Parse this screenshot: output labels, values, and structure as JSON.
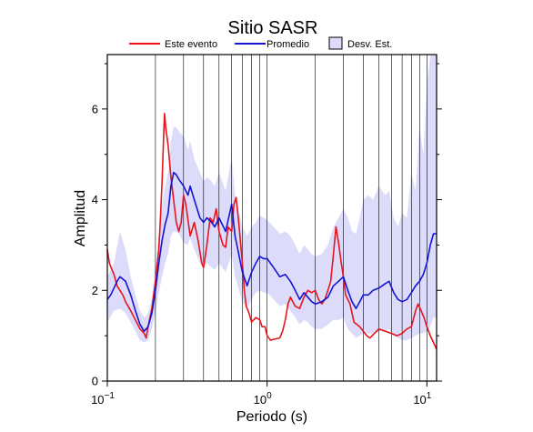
{
  "chart_data": {
    "type": "line",
    "title": "Sitio SASR",
    "xlabel": "Periodo (s)",
    "ylabel": "Amplitud",
    "xscale": "log",
    "xlim": [
      0.1,
      11.5
    ],
    "ylim": [
      0,
      7.2
    ],
    "grid": "vertical-log",
    "legend_position": "top",
    "x_ticks": [
      {
        "value": 0.1,
        "base": "10",
        "exp": "−1"
      },
      {
        "value": 1,
        "base": "10",
        "exp": "0"
      },
      {
        "value": 10,
        "base": "10",
        "exp": "1"
      }
    ],
    "y_ticks": [
      {
        "value": 0,
        "label": "0"
      },
      {
        "value": 2,
        "label": "2"
      },
      {
        "value": 4,
        "label": "4"
      },
      {
        "value": 6,
        "label": "6"
      }
    ],
    "legend": [
      {
        "label": "Este evento",
        "kind": "line",
        "color": "#e8141e"
      },
      {
        "label": "Promedio",
        "kind": "line",
        "color": "#1414d2"
      },
      {
        "label": "Desv. Est.",
        "kind": "band",
        "color": "#dcdcfa"
      }
    ],
    "series": [
      {
        "name": "Este evento",
        "color": "#e8141e",
        "points": [
          [
            0.1,
            2.9
          ],
          [
            0.103,
            2.6
          ],
          [
            0.107,
            2.45
          ],
          [
            0.11,
            2.35
          ],
          [
            0.115,
            2.1
          ],
          [
            0.12,
            2.0
          ],
          [
            0.125,
            1.9
          ],
          [
            0.13,
            1.75
          ],
          [
            0.14,
            1.55
          ],
          [
            0.15,
            1.35
          ],
          [
            0.16,
            1.15
          ],
          [
            0.17,
            1.05
          ],
          [
            0.175,
            0.95
          ],
          [
            0.18,
            1.2
          ],
          [
            0.19,
            1.6
          ],
          [
            0.2,
            2.2
          ],
          [
            0.21,
            2.9
          ],
          [
            0.215,
            3.6
          ],
          [
            0.22,
            4.4
          ],
          [
            0.225,
            5.4
          ],
          [
            0.228,
            5.9
          ],
          [
            0.232,
            5.6
          ],
          [
            0.24,
            5.2
          ],
          [
            0.25,
            4.5
          ],
          [
            0.26,
            4.0
          ],
          [
            0.27,
            3.5
          ],
          [
            0.28,
            3.3
          ],
          [
            0.29,
            3.5
          ],
          [
            0.3,
            4.1
          ],
          [
            0.31,
            3.9
          ],
          [
            0.33,
            3.2
          ],
          [
            0.35,
            3.5
          ],
          [
            0.37,
            3.1
          ],
          [
            0.39,
            2.6
          ],
          [
            0.4,
            2.5
          ],
          [
            0.42,
            3.0
          ],
          [
            0.44,
            3.6
          ],
          [
            0.46,
            3.5
          ],
          [
            0.48,
            3.8
          ],
          [
            0.5,
            3.3
          ],
          [
            0.53,
            3.0
          ],
          [
            0.55,
            2.95
          ],
          [
            0.57,
            3.4
          ],
          [
            0.6,
            3.3
          ],
          [
            0.62,
            3.9
          ],
          [
            0.64,
            4.05
          ],
          [
            0.66,
            3.6
          ],
          [
            0.7,
            2.6
          ],
          [
            0.72,
            2.0
          ],
          [
            0.74,
            1.65
          ],
          [
            0.77,
            1.5
          ],
          [
            0.8,
            1.3
          ],
          [
            0.85,
            1.4
          ],
          [
            0.9,
            1.35
          ],
          [
            0.93,
            1.2
          ],
          [
            0.97,
            1.2
          ],
          [
            1.0,
            1.0
          ],
          [
            1.05,
            0.9
          ],
          [
            1.1,
            0.92
          ],
          [
            1.2,
            0.95
          ],
          [
            1.25,
            1.1
          ],
          [
            1.3,
            1.35
          ],
          [
            1.35,
            1.7
          ],
          [
            1.4,
            1.85
          ],
          [
            1.5,
            1.65
          ],
          [
            1.6,
            1.6
          ],
          [
            1.7,
            1.85
          ],
          [
            1.8,
            2.0
          ],
          [
            1.9,
            1.95
          ],
          [
            2.0,
            2.0
          ],
          [
            2.1,
            1.8
          ],
          [
            2.2,
            1.7
          ],
          [
            2.3,
            1.8
          ],
          [
            2.4,
            2.0
          ],
          [
            2.5,
            2.2
          ],
          [
            2.6,
            2.8
          ],
          [
            2.7,
            3.4
          ],
          [
            2.8,
            3.05
          ],
          [
            2.9,
            2.65
          ],
          [
            3.0,
            2.3
          ],
          [
            3.1,
            1.9
          ],
          [
            3.3,
            1.7
          ],
          [
            3.5,
            1.3
          ],
          [
            3.8,
            1.2
          ],
          [
            4.0,
            1.1
          ],
          [
            4.2,
            1.0
          ],
          [
            4.4,
            0.95
          ],
          [
            4.7,
            1.05
          ],
          [
            5.0,
            1.15
          ],
          [
            5.5,
            1.1
          ],
          [
            6.0,
            1.05
          ],
          [
            6.5,
            1.0
          ],
          [
            7.0,
            1.05
          ],
          [
            7.5,
            1.15
          ],
          [
            8.0,
            1.2
          ],
          [
            8.5,
            1.55
          ],
          [
            8.8,
            1.7
          ],
          [
            9.2,
            1.55
          ],
          [
            9.6,
            1.4
          ],
          [
            10.0,
            1.2
          ],
          [
            10.5,
            1.0
          ],
          [
            11.0,
            0.85
          ],
          [
            11.5,
            0.7
          ]
        ]
      },
      {
        "name": "Promedio",
        "color": "#1414d2",
        "points": [
          [
            0.1,
            1.8
          ],
          [
            0.105,
            1.9
          ],
          [
            0.11,
            2.05
          ],
          [
            0.115,
            2.2
          ],
          [
            0.12,
            2.3
          ],
          [
            0.13,
            2.2
          ],
          [
            0.14,
            1.9
          ],
          [
            0.15,
            1.55
          ],
          [
            0.16,
            1.25
          ],
          [
            0.17,
            1.1
          ],
          [
            0.18,
            1.2
          ],
          [
            0.19,
            1.5
          ],
          [
            0.2,
            2.0
          ],
          [
            0.21,
            2.6
          ],
          [
            0.22,
            3.1
          ],
          [
            0.23,
            3.45
          ],
          [
            0.24,
            3.7
          ],
          [
            0.25,
            4.3
          ],
          [
            0.26,
            4.6
          ],
          [
            0.27,
            4.55
          ],
          [
            0.28,
            4.45
          ],
          [
            0.3,
            4.3
          ],
          [
            0.32,
            4.1
          ],
          [
            0.33,
            4.3
          ],
          [
            0.35,
            4.0
          ],
          [
            0.38,
            3.6
          ],
          [
            0.4,
            3.5
          ],
          [
            0.42,
            3.6
          ],
          [
            0.45,
            3.5
          ],
          [
            0.47,
            3.4
          ],
          [
            0.5,
            3.6
          ],
          [
            0.55,
            3.3
          ],
          [
            0.6,
            3.9
          ],
          [
            0.63,
            3.2
          ],
          [
            0.66,
            2.85
          ],
          [
            0.7,
            2.4
          ],
          [
            0.75,
            2.1
          ],
          [
            0.8,
            2.4
          ],
          [
            0.85,
            2.6
          ],
          [
            0.9,
            2.75
          ],
          [
            0.95,
            2.7
          ],
          [
            1.0,
            2.7
          ],
          [
            1.1,
            2.5
          ],
          [
            1.2,
            2.3
          ],
          [
            1.3,
            2.35
          ],
          [
            1.4,
            2.2
          ],
          [
            1.5,
            2.0
          ],
          [
            1.6,
            1.8
          ],
          [
            1.7,
            1.95
          ],
          [
            1.8,
            1.85
          ],
          [
            1.9,
            1.75
          ],
          [
            2.0,
            1.7
          ],
          [
            2.2,
            1.75
          ],
          [
            2.4,
            1.85
          ],
          [
            2.6,
            2.1
          ],
          [
            2.8,
            2.2
          ],
          [
            3.0,
            2.3
          ],
          [
            3.2,
            2.0
          ],
          [
            3.4,
            1.75
          ],
          [
            3.6,
            1.6
          ],
          [
            3.8,
            1.75
          ],
          [
            4.0,
            1.9
          ],
          [
            4.3,
            1.9
          ],
          [
            4.6,
            2.0
          ],
          [
            5.0,
            2.05
          ],
          [
            5.5,
            2.15
          ],
          [
            5.8,
            2.2
          ],
          [
            6.2,
            1.95
          ],
          [
            6.6,
            1.8
          ],
          [
            7.0,
            1.75
          ],
          [
            7.5,
            1.8
          ],
          [
            8.0,
            1.95
          ],
          [
            8.5,
            2.1
          ],
          [
            9.0,
            2.2
          ],
          [
            9.5,
            2.35
          ],
          [
            10.0,
            2.6
          ],
          [
            10.5,
            3.0
          ],
          [
            11.0,
            3.25
          ],
          [
            11.5,
            3.25
          ]
        ]
      }
    ],
    "band": {
      "name": "Desv. Est.",
      "color": "#dcdcfa",
      "points": [
        [
          0.1,
          1.3,
          2.3
        ],
        [
          0.11,
          1.55,
          2.6
        ],
        [
          0.12,
          1.6,
          3.3
        ],
        [
          0.13,
          1.5,
          2.9
        ],
        [
          0.14,
          1.3,
          2.3
        ],
        [
          0.15,
          1.1,
          1.9
        ],
        [
          0.16,
          0.9,
          1.55
        ],
        [
          0.17,
          0.85,
          1.4
        ],
        [
          0.18,
          0.9,
          1.5
        ],
        [
          0.19,
          1.15,
          1.85
        ],
        [
          0.2,
          1.5,
          2.5
        ],
        [
          0.21,
          1.95,
          3.25
        ],
        [
          0.22,
          2.3,
          3.9
        ],
        [
          0.23,
          2.6,
          4.3
        ],
        [
          0.24,
          2.8,
          4.6
        ],
        [
          0.25,
          3.2,
          5.3
        ],
        [
          0.26,
          3.3,
          5.6
        ],
        [
          0.27,
          3.3,
          5.6
        ],
        [
          0.28,
          3.25,
          5.5
        ],
        [
          0.3,
          3.05,
          5.4
        ],
        [
          0.32,
          3.0,
          5.1
        ],
        [
          0.33,
          3.15,
          5.3
        ],
        [
          0.35,
          2.9,
          4.9
        ],
        [
          0.38,
          2.6,
          4.6
        ],
        [
          0.4,
          2.55,
          4.4
        ],
        [
          0.42,
          2.6,
          4.5
        ],
        [
          0.45,
          2.5,
          4.4
        ],
        [
          0.47,
          2.45,
          4.3
        ],
        [
          0.5,
          2.6,
          4.6
        ],
        [
          0.55,
          2.4,
          4.2
        ],
        [
          0.6,
          2.8,
          4.95
        ],
        [
          0.63,
          2.3,
          4.1
        ],
        [
          0.66,
          2.05,
          3.8
        ],
        [
          0.7,
          1.75,
          3.4
        ],
        [
          0.75,
          1.6,
          3.2
        ],
        [
          0.8,
          1.8,
          3.4
        ],
        [
          0.85,
          1.95,
          3.5
        ],
        [
          0.9,
          2.0,
          3.65
        ],
        [
          0.95,
          1.95,
          3.6
        ],
        [
          1.0,
          1.95,
          3.55
        ],
        [
          1.1,
          1.8,
          3.4
        ],
        [
          1.2,
          1.65,
          3.25
        ],
        [
          1.3,
          1.7,
          3.3
        ],
        [
          1.4,
          1.55,
          3.2
        ],
        [
          1.5,
          1.4,
          3.0
        ],
        [
          1.6,
          1.25,
          2.8
        ],
        [
          1.7,
          1.35,
          3.0
        ],
        [
          1.8,
          1.3,
          2.9
        ],
        [
          1.9,
          1.2,
          2.8
        ],
        [
          2.0,
          1.15,
          2.75
        ],
        [
          2.2,
          1.15,
          2.8
        ],
        [
          2.4,
          1.25,
          3.0
        ],
        [
          2.6,
          1.35,
          3.4
        ],
        [
          2.8,
          1.35,
          3.6
        ],
        [
          3.0,
          1.4,
          3.8
        ],
        [
          3.2,
          1.15,
          3.6
        ],
        [
          3.4,
          1.05,
          3.3
        ],
        [
          3.6,
          0.95,
          3.25
        ],
        [
          3.8,
          1.0,
          3.6
        ],
        [
          4.0,
          1.05,
          4.0
        ],
        [
          4.3,
          1.05,
          4.1
        ],
        [
          4.6,
          1.05,
          4.0
        ],
        [
          5.0,
          1.1,
          4.3
        ],
        [
          5.5,
          1.1,
          4.1
        ],
        [
          5.8,
          1.15,
          4.2
        ],
        [
          6.2,
          1.0,
          3.6
        ],
        [
          6.6,
          0.95,
          3.4
        ],
        [
          7.0,
          0.9,
          3.7
        ],
        [
          7.5,
          0.9,
          3.6
        ],
        [
          8.0,
          0.95,
          4.6
        ],
        [
          8.5,
          1.0,
          4.2
        ],
        [
          9.0,
          1.05,
          5.6
        ],
        [
          9.5,
          1.05,
          5.0
        ],
        [
          10.0,
          1.1,
          6.5
        ],
        [
          10.5,
          1.2,
          7.2
        ],
        [
          11.0,
          1.4,
          7.2
        ],
        [
          11.5,
          1.4,
          7.2
        ]
      ]
    }
  }
}
